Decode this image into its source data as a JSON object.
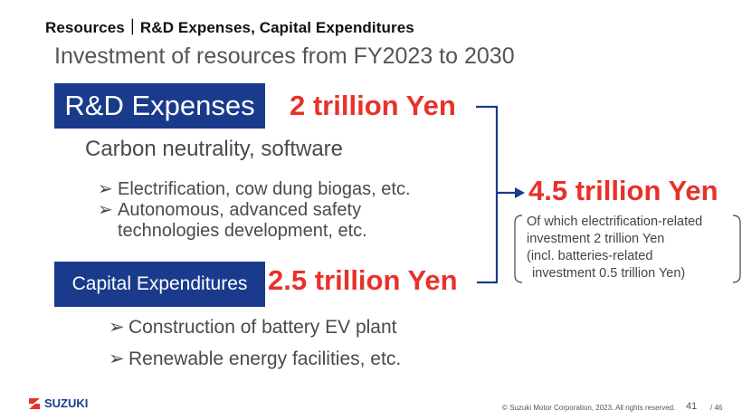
{
  "header": {
    "title": "Resources｜R&D Expenses, Capital Expenditures"
  },
  "subtitle": "Investment of resources from FY2023 to 2030",
  "rd": {
    "label": "R&D Expenses",
    "amount": "2 trillion Yen",
    "description": "Carbon neutrality, software",
    "bullets": [
      "Electrification, cow dung biogas, etc.",
      "Autonomous, advanced safety technologies development, etc."
    ]
  },
  "capex": {
    "label": "Capital Expenditures",
    "amount": "2.5 trillion Yen",
    "bullets": [
      "Construction of battery EV plant",
      "Renewable energy facilities, etc."
    ]
  },
  "total": {
    "amount": "4.5 trillion Yen",
    "note_lines": [
      "Of which electrification-related",
      "investment 2 trillion Yen",
      "(incl. batteries-related",
      "investment 0.5 trillion Yen)"
    ]
  },
  "bullet_glyph": "➢",
  "colors": {
    "navy": "#1a3b8c",
    "red": "#e8312a"
  },
  "footer": {
    "logo": "SUZUKI",
    "logo_icon": "suzuki-s-icon",
    "copyright": "© Suzuki Motor Corporation, 2023. All rights reserved.",
    "page": "41",
    "total_pages": "/ 46"
  }
}
